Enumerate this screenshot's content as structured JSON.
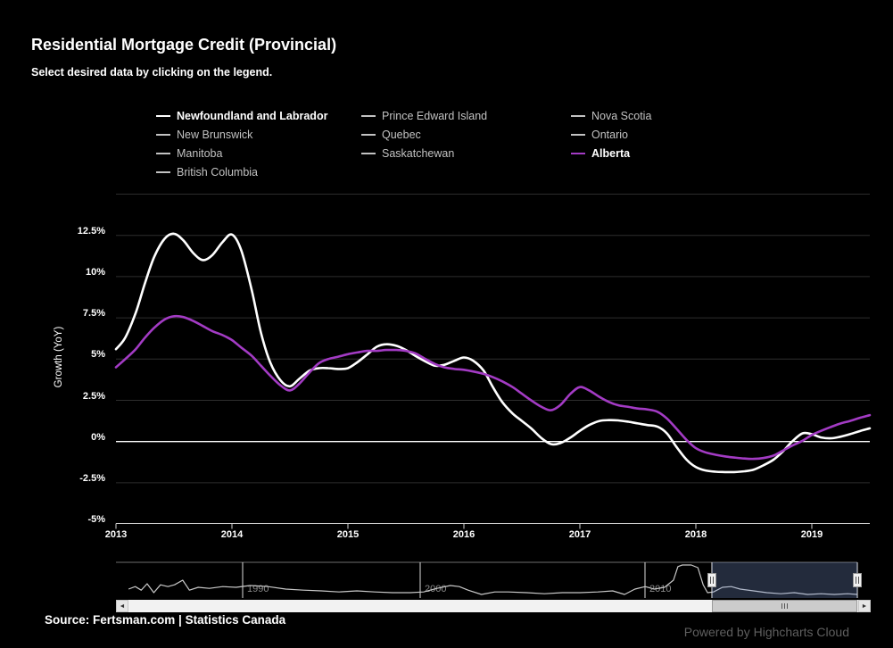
{
  "title": "Residential Mortgage Credit (Provincial)",
  "subtitle": "Select desired data by clicking on the legend.",
  "colors": {
    "background": "#000000",
    "newfoundland_series": "#ffffff",
    "alberta_series": "#a33bc4",
    "inactive_legend": "#c2c2c2",
    "gridline": "#2d2d2d",
    "zero_line": "#ffffff",
    "axis_line": "#cfcfcf",
    "navigator_mask": "rgba(125,155,215,0.28)"
  },
  "legend": {
    "items": [
      {
        "label": "Newfoundland and Labrador",
        "active": true,
        "color": "#ffffff"
      },
      {
        "label": "Prince Edward Island",
        "active": false,
        "color": "#c2c2c2"
      },
      {
        "label": "Nova Scotia",
        "active": false,
        "color": "#c2c2c2"
      },
      {
        "label": "New Brunswick",
        "active": false,
        "color": "#c2c2c2"
      },
      {
        "label": "Quebec",
        "active": false,
        "color": "#c2c2c2"
      },
      {
        "label": "Ontario",
        "active": false,
        "color": "#c2c2c2"
      },
      {
        "label": "Manitoba",
        "active": false,
        "color": "#c2c2c2"
      },
      {
        "label": "Saskatchewan",
        "active": false,
        "color": "#c2c2c2"
      },
      {
        "label": "Alberta",
        "active": true,
        "color": "#a33bc4"
      },
      {
        "label": "British Columbia",
        "active": false,
        "color": "#c2c2c2"
      }
    ]
  },
  "y_axis": {
    "title": "Growth (YoY)",
    "tick_labels": [
      "12.5%",
      "10%",
      "7.5%",
      "5%",
      "2.5%",
      "0%",
      "-2.5%",
      "-5%"
    ],
    "tick_values": [
      12.5,
      10,
      7.5,
      5,
      2.5,
      0,
      -2.5,
      -5
    ]
  },
  "x_axis": {
    "tick_labels": [
      "2013",
      "2014",
      "2015",
      "2016",
      "2017",
      "2018",
      "2019"
    ],
    "tick_values": [
      2013,
      2014,
      2015,
      2016,
      2017,
      2018,
      2019
    ]
  },
  "footer": {
    "source": "Source: Fertsman.com | Statistics Canada",
    "credits": "Powered by Highcharts Cloud"
  },
  "icons": {
    "scroll_left": "◄",
    "scroll_right": "►"
  },
  "chart_data": {
    "type": "line",
    "title": "Residential Mortgage Credit (Provincial)",
    "xlabel": "",
    "ylabel": "Growth (YoY)",
    "x_range": [
      2013,
      2019.5
    ],
    "y_range": [
      -5,
      15
    ],
    "grid": true,
    "legend_position": "top",
    "series": [
      {
        "name": "Newfoundland and Labrador",
        "color": "#ffffff",
        "visible": true,
        "points": [
          [
            2013.0,
            5.6
          ],
          [
            2013.08,
            6.3
          ],
          [
            2013.17,
            7.8
          ],
          [
            2013.25,
            9.6
          ],
          [
            2013.33,
            11.2
          ],
          [
            2013.42,
            12.3
          ],
          [
            2013.5,
            12.6
          ],
          [
            2013.58,
            12.2
          ],
          [
            2013.67,
            11.4
          ],
          [
            2013.75,
            11.0
          ],
          [
            2013.83,
            11.3
          ],
          [
            2013.92,
            12.1
          ],
          [
            2014.0,
            12.55
          ],
          [
            2014.08,
            11.6
          ],
          [
            2014.17,
            9.2
          ],
          [
            2014.25,
            6.6
          ],
          [
            2014.33,
            4.8
          ],
          [
            2014.42,
            3.7
          ],
          [
            2014.5,
            3.35
          ],
          [
            2014.58,
            3.8
          ],
          [
            2014.67,
            4.3
          ],
          [
            2014.75,
            4.45
          ],
          [
            2014.83,
            4.45
          ],
          [
            2014.92,
            4.4
          ],
          [
            2015.0,
            4.45
          ],
          [
            2015.08,
            4.8
          ],
          [
            2015.17,
            5.3
          ],
          [
            2015.25,
            5.75
          ],
          [
            2015.33,
            5.9
          ],
          [
            2015.42,
            5.8
          ],
          [
            2015.5,
            5.55
          ],
          [
            2015.58,
            5.2
          ],
          [
            2015.67,
            4.85
          ],
          [
            2015.75,
            4.6
          ],
          [
            2015.83,
            4.65
          ],
          [
            2015.92,
            4.9
          ],
          [
            2016.0,
            5.1
          ],
          [
            2016.08,
            4.9
          ],
          [
            2016.17,
            4.3
          ],
          [
            2016.25,
            3.3
          ],
          [
            2016.33,
            2.4
          ],
          [
            2016.42,
            1.7
          ],
          [
            2016.5,
            1.25
          ],
          [
            2016.58,
            0.8
          ],
          [
            2016.67,
            0.2
          ],
          [
            2016.75,
            -0.15
          ],
          [
            2016.83,
            -0.1
          ],
          [
            2016.92,
            0.25
          ],
          [
            2017.0,
            0.65
          ],
          [
            2017.08,
            1.0
          ],
          [
            2017.17,
            1.25
          ],
          [
            2017.25,
            1.3
          ],
          [
            2017.33,
            1.28
          ],
          [
            2017.42,
            1.2
          ],
          [
            2017.5,
            1.1
          ],
          [
            2017.58,
            1.0
          ],
          [
            2017.67,
            0.9
          ],
          [
            2017.75,
            0.5
          ],
          [
            2017.83,
            -0.3
          ],
          [
            2017.92,
            -1.1
          ],
          [
            2018.0,
            -1.55
          ],
          [
            2018.08,
            -1.75
          ],
          [
            2018.17,
            -1.83
          ],
          [
            2018.25,
            -1.85
          ],
          [
            2018.33,
            -1.85
          ],
          [
            2018.42,
            -1.8
          ],
          [
            2018.5,
            -1.7
          ],
          [
            2018.58,
            -1.45
          ],
          [
            2018.67,
            -1.1
          ],
          [
            2018.75,
            -0.6
          ],
          [
            2018.83,
            0.0
          ],
          [
            2018.92,
            0.5
          ],
          [
            2019.0,
            0.45
          ],
          [
            2019.08,
            0.25
          ],
          [
            2019.17,
            0.2
          ],
          [
            2019.25,
            0.3
          ],
          [
            2019.33,
            0.45
          ],
          [
            2019.42,
            0.65
          ],
          [
            2019.5,
            0.8
          ]
        ]
      },
      {
        "name": "Alberta",
        "color": "#a33bc4",
        "visible": true,
        "points": [
          [
            2013.0,
            4.5
          ],
          [
            2013.08,
            5.0
          ],
          [
            2013.17,
            5.6
          ],
          [
            2013.25,
            6.3
          ],
          [
            2013.33,
            6.9
          ],
          [
            2013.42,
            7.4
          ],
          [
            2013.5,
            7.6
          ],
          [
            2013.58,
            7.55
          ],
          [
            2013.67,
            7.3
          ],
          [
            2013.75,
            7.0
          ],
          [
            2013.83,
            6.7
          ],
          [
            2013.92,
            6.45
          ],
          [
            2014.0,
            6.15
          ],
          [
            2014.08,
            5.7
          ],
          [
            2014.17,
            5.2
          ],
          [
            2014.25,
            4.6
          ],
          [
            2014.33,
            4.0
          ],
          [
            2014.42,
            3.4
          ],
          [
            2014.5,
            3.1
          ],
          [
            2014.58,
            3.5
          ],
          [
            2014.67,
            4.2
          ],
          [
            2014.75,
            4.75
          ],
          [
            2014.83,
            5.0
          ],
          [
            2014.92,
            5.15
          ],
          [
            2015.0,
            5.3
          ],
          [
            2015.08,
            5.4
          ],
          [
            2015.17,
            5.5
          ],
          [
            2015.25,
            5.5
          ],
          [
            2015.33,
            5.55
          ],
          [
            2015.42,
            5.55
          ],
          [
            2015.5,
            5.5
          ],
          [
            2015.58,
            5.35
          ],
          [
            2015.67,
            5.0
          ],
          [
            2015.75,
            4.7
          ],
          [
            2015.83,
            4.5
          ],
          [
            2015.92,
            4.4
          ],
          [
            2016.0,
            4.35
          ],
          [
            2016.08,
            4.25
          ],
          [
            2016.17,
            4.1
          ],
          [
            2016.25,
            3.9
          ],
          [
            2016.33,
            3.65
          ],
          [
            2016.42,
            3.3
          ],
          [
            2016.5,
            2.9
          ],
          [
            2016.58,
            2.5
          ],
          [
            2016.67,
            2.1
          ],
          [
            2016.75,
            1.9
          ],
          [
            2016.83,
            2.2
          ],
          [
            2016.92,
            2.9
          ],
          [
            2017.0,
            3.3
          ],
          [
            2017.08,
            3.1
          ],
          [
            2017.17,
            2.7
          ],
          [
            2017.25,
            2.4
          ],
          [
            2017.33,
            2.2
          ],
          [
            2017.42,
            2.1
          ],
          [
            2017.5,
            2.0
          ],
          [
            2017.58,
            1.95
          ],
          [
            2017.67,
            1.8
          ],
          [
            2017.75,
            1.4
          ],
          [
            2017.83,
            0.8
          ],
          [
            2017.92,
            0.1
          ],
          [
            2018.0,
            -0.4
          ],
          [
            2018.08,
            -0.65
          ],
          [
            2018.17,
            -0.8
          ],
          [
            2018.25,
            -0.9
          ],
          [
            2018.33,
            -0.97
          ],
          [
            2018.42,
            -1.03
          ],
          [
            2018.5,
            -1.05
          ],
          [
            2018.58,
            -1.0
          ],
          [
            2018.67,
            -0.85
          ],
          [
            2018.75,
            -0.55
          ],
          [
            2018.83,
            -0.25
          ],
          [
            2018.92,
            0.05
          ],
          [
            2019.0,
            0.4
          ],
          [
            2019.08,
            0.65
          ],
          [
            2019.17,
            0.9
          ],
          [
            2019.25,
            1.1
          ],
          [
            2019.33,
            1.25
          ],
          [
            2019.42,
            1.45
          ],
          [
            2019.5,
            1.6
          ]
        ]
      }
    ],
    "hidden_series": [
      "Prince Edward Island",
      "Nova Scotia",
      "New Brunswick",
      "Quebec",
      "Ontario",
      "Manitoba",
      "Saskatchewan",
      "British Columbia"
    ],
    "navigator": {
      "axis_labels": [
        "1990",
        "2000",
        "2010"
      ],
      "selected_fraction": [
        0.804,
        1.0
      ],
      "preview_points": [
        [
          0.017,
          0.75
        ],
        [
          0.026,
          0.68
        ],
        [
          0.034,
          0.78
        ],
        [
          0.042,
          0.6
        ],
        [
          0.051,
          0.85
        ],
        [
          0.06,
          0.63
        ],
        [
          0.07,
          0.68
        ],
        [
          0.079,
          0.63
        ],
        [
          0.09,
          0.5
        ],
        [
          0.099,
          0.78
        ],
        [
          0.111,
          0.7
        ],
        [
          0.126,
          0.73
        ],
        [
          0.144,
          0.68
        ],
        [
          0.162,
          0.7
        ],
        [
          0.181,
          0.65
        ],
        [
          0.205,
          0.68
        ],
        [
          0.229,
          0.75
        ],
        [
          0.253,
          0.78
        ],
        [
          0.277,
          0.8
        ],
        [
          0.301,
          0.83
        ],
        [
          0.325,
          0.8
        ],
        [
          0.349,
          0.83
        ],
        [
          0.373,
          0.85
        ],
        [
          0.397,
          0.85
        ],
        [
          0.415,
          0.83
        ],
        [
          0.433,
          0.73
        ],
        [
          0.451,
          0.65
        ],
        [
          0.463,
          0.68
        ],
        [
          0.475,
          0.78
        ],
        [
          0.493,
          0.9
        ],
        [
          0.511,
          0.83
        ],
        [
          0.529,
          0.83
        ],
        [
          0.554,
          0.85
        ],
        [
          0.578,
          0.88
        ],
        [
          0.602,
          0.85
        ],
        [
          0.626,
          0.85
        ],
        [
          0.65,
          0.83
        ],
        [
          0.67,
          0.8
        ],
        [
          0.686,
          0.9
        ],
        [
          0.7,
          0.75
        ],
        [
          0.714,
          0.68
        ],
        [
          0.726,
          0.75
        ],
        [
          0.74,
          0.7
        ],
        [
          0.752,
          0.5
        ],
        [
          0.758,
          0.12
        ],
        [
          0.764,
          0.075
        ],
        [
          0.776,
          0.075
        ],
        [
          0.785,
          0.15
        ],
        [
          0.792,
          0.63
        ],
        [
          0.798,
          0.85
        ],
        [
          0.806,
          0.83
        ],
        [
          0.818,
          0.7
        ],
        [
          0.83,
          0.68
        ],
        [
          0.842,
          0.75
        ],
        [
          0.86,
          0.8
        ],
        [
          0.878,
          0.85
        ],
        [
          0.897,
          0.88
        ],
        [
          0.915,
          0.85
        ],
        [
          0.933,
          0.9
        ],
        [
          0.951,
          0.88
        ],
        [
          0.969,
          0.9
        ],
        [
          0.987,
          0.88
        ],
        [
          1.0,
          0.9
        ]
      ]
    }
  }
}
